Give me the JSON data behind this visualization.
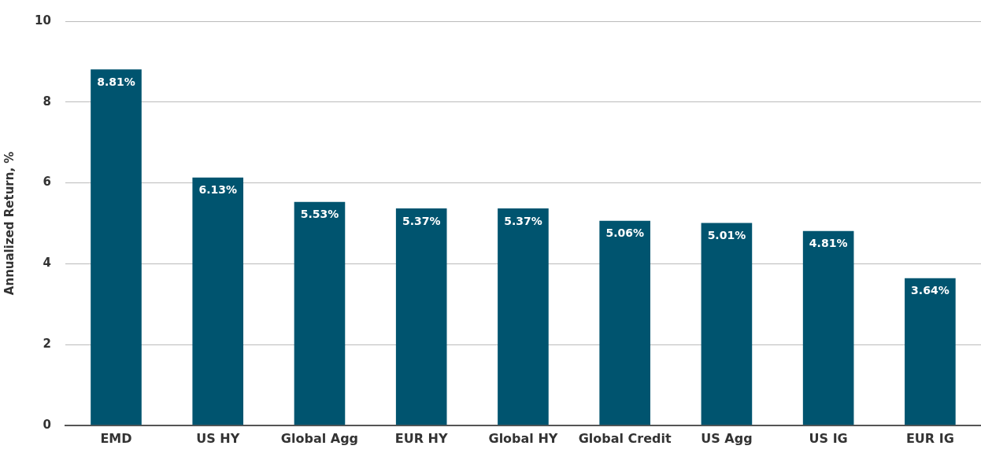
{
  "chart_data": {
    "type": "bar",
    "ylabel": "Annualized Return, %",
    "categories": [
      "EMD",
      "US HY",
      "Global Agg",
      "EUR HY",
      "Global HY",
      "Global Credit",
      "US Agg",
      "US IG",
      "EUR IG"
    ],
    "values": [
      8.81,
      6.13,
      5.53,
      5.37,
      5.37,
      5.06,
      5.01,
      4.81,
      3.64
    ],
    "value_labels": [
      "8.81%",
      "6.13%",
      "5.53%",
      "5.37%",
      "5.37%",
      "5.06%",
      "5.01%",
      "4.81%",
      "3.64%"
    ],
    "color": "#00546f",
    "ylim": [
      0,
      10
    ],
    "yticks": [
      0,
      2,
      4,
      6,
      8,
      10
    ],
    "grid": "y",
    "legend": false
  }
}
